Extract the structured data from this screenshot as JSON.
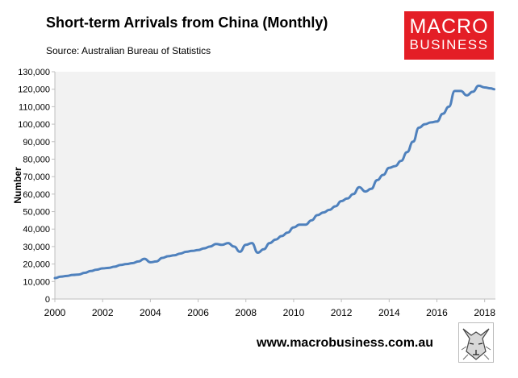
{
  "header": {
    "title": "Short-term Arrivals from China (Monthly)",
    "source": "Source: Australian Bureau of Statistics"
  },
  "brand": {
    "logo_line1": "MACRO",
    "logo_line2": "BUSINESS",
    "logo_color": "#e41e26",
    "url": "www.macrobusiness.com.au",
    "mascot_icon": "wolf-sketch-icon"
  },
  "chart_data": {
    "type": "line",
    "title": "Short-term Arrivals from China (Monthly)",
    "ylabel": "Number",
    "xlabel": "",
    "xlim": [
      2000.0,
      2018.45
    ],
    "ylim": [
      0,
      130000
    ],
    "x_ticks": [
      2000,
      2002,
      2004,
      2006,
      2008,
      2010,
      2012,
      2014,
      2016,
      2018
    ],
    "x_tick_labels": [
      "2000",
      "2002",
      "2004",
      "2006",
      "2008",
      "2010",
      "2012",
      "2014",
      "2016",
      "2018"
    ],
    "y_ticks": [
      0,
      10000,
      20000,
      30000,
      40000,
      50000,
      60000,
      70000,
      80000,
      90000,
      100000,
      110000,
      120000,
      130000
    ],
    "y_tick_labels": [
      "0",
      "10,000",
      "20,000",
      "30,000",
      "40,000",
      "50,000",
      "60,000",
      "70,000",
      "80,000",
      "90,000",
      "100,000",
      "110,000",
      "120,000",
      "130,000"
    ],
    "grid": false,
    "plot_background": "#f2f2f2",
    "series": [
      {
        "color": "#4f81bd",
        "x": [
          2000.0,
          2000.25,
          2000.5,
          2000.75,
          2001.0,
          2001.25,
          2001.5,
          2001.75,
          2002.0,
          2002.25,
          2002.5,
          2002.75,
          2003.0,
          2003.25,
          2003.5,
          2003.75,
          2004.0,
          2004.25,
          2004.5,
          2004.75,
          2005.0,
          2005.25,
          2005.5,
          2005.75,
          2006.0,
          2006.25,
          2006.5,
          2006.75,
          2007.0,
          2007.25,
          2007.5,
          2007.75,
          2008.0,
          2008.25,
          2008.5,
          2008.75,
          2009.0,
          2009.25,
          2009.5,
          2009.75,
          2010.0,
          2010.25,
          2010.5,
          2010.75,
          2011.0,
          2011.25,
          2011.5,
          2011.75,
          2012.0,
          2012.25,
          2012.5,
          2012.75,
          2013.0,
          2013.25,
          2013.5,
          2013.75,
          2014.0,
          2014.25,
          2014.5,
          2014.75,
          2015.0,
          2015.25,
          2015.5,
          2015.75,
          2016.0,
          2016.25,
          2016.5,
          2016.75,
          2017.0,
          2017.25,
          2017.5,
          2017.75,
          2018.0,
          2018.25,
          2018.4
        ],
        "y": [
          12000,
          12800,
          13200,
          13800,
          14000,
          15000,
          16000,
          16800,
          17500,
          17800,
          18500,
          19500,
          20000,
          20500,
          21500,
          23000,
          21000,
          21500,
          23500,
          24500,
          25000,
          26000,
          27000,
          27500,
          28000,
          29000,
          30000,
          31500,
          31000,
          32000,
          30000,
          27000,
          31000,
          32000,
          26500,
          28500,
          32000,
          34000,
          36000,
          38000,
          41000,
          42500,
          42500,
          45000,
          48000,
          49500,
          51000,
          53000,
          56000,
          57500,
          60000,
          64000,
          61500,
          63000,
          68000,
          71000,
          75000,
          76000,
          79000,
          84000,
          90000,
          98000,
          100000,
          101000,
          101500,
          106000,
          110000,
          119000,
          119000,
          116500,
          118500,
          122000,
          121000,
          120500,
          120000
        ]
      }
    ]
  }
}
